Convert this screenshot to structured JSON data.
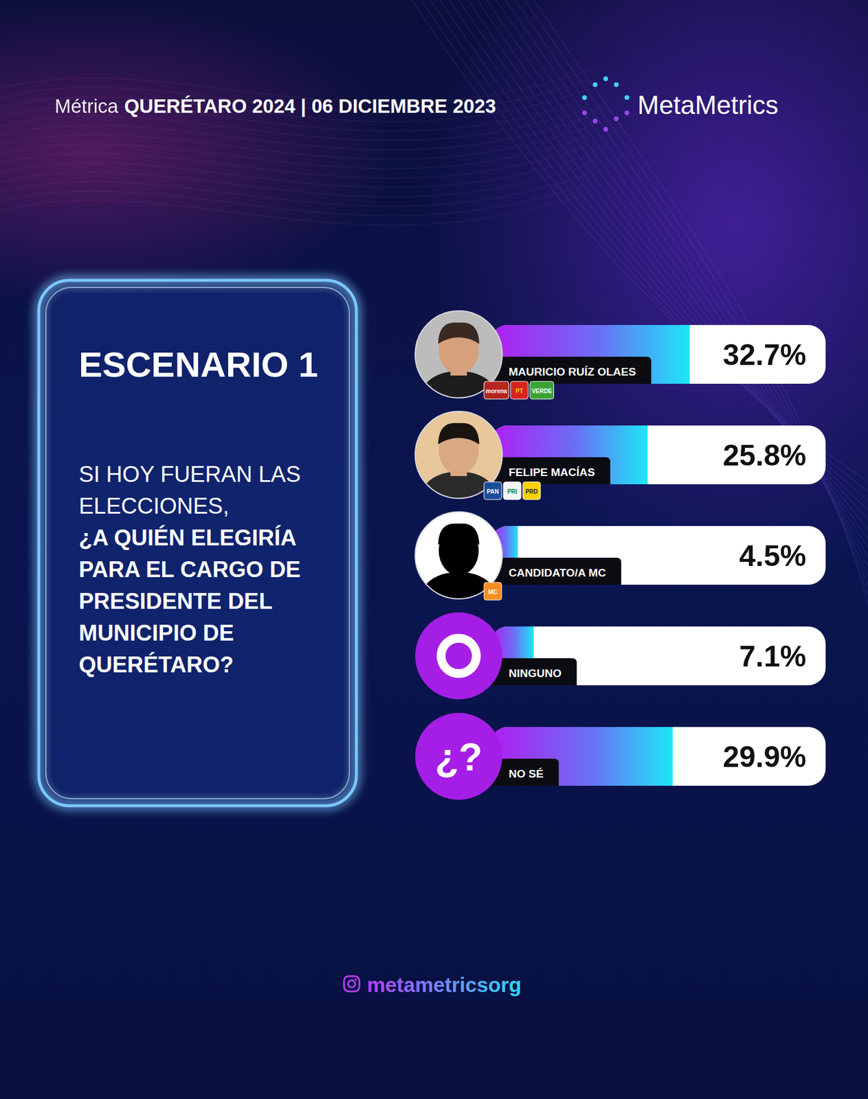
{
  "chart_data": {
    "type": "bar",
    "orientation": "horizontal",
    "header_prefix": "Métrica",
    "header": "QUERÉTARO 2024 | 06 DICIEMBRE 2023",
    "brand": "MetaMetrics",
    "title": "ESCENARIO 1",
    "subtitle": "SI HOY FUERAN LAS ELECCIONES,",
    "question": "¿A QUIÉN ELEGIRÍA PARA EL CARGO DE PRESIDENTE DEL MUNICIPIO DE QUERÉTARO?",
    "categories": [
      "MAURICIO RUÍZ OLAES",
      "FELIPE MACÍAS",
      "CANDIDATO/A MC",
      "NINGUNO",
      "NO SÉ"
    ],
    "parties": [
      [
        "morena",
        "PT",
        "VERDE"
      ],
      [
        "PAN",
        "PRI",
        "PRD"
      ],
      [
        "MC"
      ],
      [],
      []
    ],
    "icon_labels": [
      null,
      null,
      null,
      null,
      "¿?"
    ],
    "values": [
      32.7,
      25.8,
      4.5,
      7.1,
      29.9
    ],
    "value_labels": [
      "32.7%",
      "25.8%",
      "4.5%",
      "7.1%",
      "29.9%"
    ],
    "data_labels": true,
    "xlim": [
      0,
      55
    ],
    "tick_labels": false,
    "grid": false,
    "footer": "metametricsorg"
  }
}
